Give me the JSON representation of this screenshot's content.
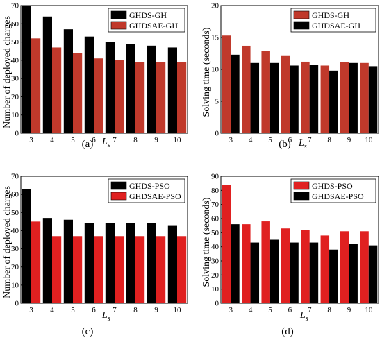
{
  "chart_data": [
    {
      "type": "bar",
      "panel_label": "(a)",
      "categories": [
        "3",
        "4",
        "5",
        "6",
        "7",
        "8",
        "9",
        "10"
      ],
      "xlabel_main": "L",
      "xlabel_sub": "s",
      "ylabel": "Number of deployed charges",
      "ylim": [
        0,
        70
      ],
      "yticks": [
        0,
        10,
        20,
        30,
        40,
        50,
        60,
        70
      ],
      "legend_position": "top-right",
      "series": [
        {
          "name": "GHDS-GH",
          "color": "#000000",
          "values": [
            70,
            64,
            57,
            53,
            50,
            49,
            48,
            47
          ]
        },
        {
          "name": "GHDSAE-GH",
          "color": "#c0392b",
          "values": [
            52,
            47,
            44,
            41,
            40,
            39,
            39,
            39
          ]
        }
      ]
    },
    {
      "type": "bar",
      "panel_label": "(b)",
      "categories": [
        "3",
        "4",
        "5",
        "6",
        "7",
        "8",
        "9",
        "10"
      ],
      "xlabel_main": "L",
      "xlabel_sub": "s",
      "ylabel": "Solving time (seconds)",
      "ylim": [
        0,
        20
      ],
      "yticks": [
        0,
        5,
        10,
        15,
        20
      ],
      "legend_position": "top-right",
      "series": [
        {
          "name": "GHDS-GH",
          "color": "#c0392b",
          "values": [
            15.3,
            13.7,
            12.9,
            12.2,
            11.2,
            10.6,
            11.1,
            11.0
          ]
        },
        {
          "name": "GHDSAE-GH",
          "color": "#000000",
          "values": [
            12.3,
            11.0,
            11.0,
            10.6,
            10.7,
            9.8,
            11.0,
            10.5
          ]
        }
      ]
    },
    {
      "type": "bar",
      "panel_label": "(c)",
      "categories": [
        "3",
        "4",
        "5",
        "6",
        "7",
        "8",
        "9",
        "10"
      ],
      "xlabel_main": "L",
      "xlabel_sub": "s",
      "ylabel": "Number of deployed charges",
      "ylim": [
        0,
        70
      ],
      "yticks": [
        0,
        10,
        20,
        30,
        40,
        50,
        60,
        70
      ],
      "legend_position": "top-right",
      "series": [
        {
          "name": "GHDS-PSO",
          "color": "#000000",
          "values": [
            63,
            47,
            46,
            44,
            44,
            44,
            44,
            43
          ]
        },
        {
          "name": "GHDSAE-PSO",
          "color": "#e02020",
          "values": [
            45,
            37,
            37,
            37,
            37,
            37,
            37,
            37
          ]
        }
      ]
    },
    {
      "type": "bar",
      "panel_label": "(d)",
      "categories": [
        "3",
        "4",
        "5",
        "6",
        "7",
        "8",
        "9",
        "10"
      ],
      "xlabel_main": "L",
      "xlabel_sub": "s",
      "ylabel": "Solving time (seconds)",
      "ylim": [
        0,
        90
      ],
      "yticks": [
        0,
        10,
        20,
        30,
        40,
        50,
        60,
        70,
        80,
        90
      ],
      "legend_position": "top-right",
      "series": [
        {
          "name": "GHDS-PSO",
          "color": "#e02020",
          "values": [
            84,
            56,
            58,
            53,
            52,
            48,
            51,
            51
          ]
        },
        {
          "name": "GHDSAE-PSO",
          "color": "#000000",
          "values": [
            56,
            43,
            45,
            43,
            43,
            38,
            42,
            41
          ]
        }
      ]
    }
  ]
}
